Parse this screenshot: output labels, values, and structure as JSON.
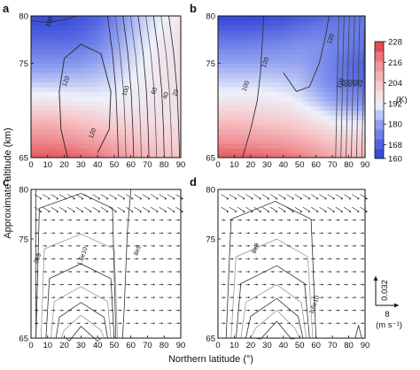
{
  "figure": {
    "ylabel_shared": "Approximate altitude (km)",
    "xlabel_shared": "Northern latitude (°)"
  },
  "colorbar": {
    "unit": "(K)",
    "ticks": [
      160,
      168,
      180,
      192,
      204,
      216,
      228
    ],
    "stops": [
      {
        "value": 160,
        "color": "#2b3fd6"
      },
      {
        "value": 168,
        "color": "#4f62e0"
      },
      {
        "value": 180,
        "color": "#8f9ff0"
      },
      {
        "value": 192,
        "color": "#eef1fb"
      },
      {
        "value": 204,
        "color": "#f6c6c9"
      },
      {
        "value": 216,
        "color": "#ef8d92"
      },
      {
        "value": 228,
        "color": "#e0393f"
      }
    ]
  },
  "vector_key": {
    "vertical_value": "0.032",
    "horizontal_value": "8",
    "unit": "(m s⁻¹)"
  },
  "chart_data": [
    {
      "panel": "a",
      "type": "heatmap",
      "title": "",
      "xlabel": "",
      "ylabel": "",
      "xlim": [
        0,
        90
      ],
      "ylim": [
        65,
        80
      ],
      "x_ticks": [
        0,
        10,
        20,
        30,
        40,
        50,
        60,
        70,
        80,
        90
      ],
      "y_ticks": [
        65,
        75,
        80
      ],
      "temperature_field": {
        "x": [
          0,
          10,
          20,
          30,
          40,
          50,
          60,
          70,
          80,
          90
        ],
        "y": [
          65,
          67,
          69,
          71,
          73,
          75,
          77,
          79,
          80
        ],
        "values": [
          [
            224,
            224,
            223,
            222,
            220,
            216,
            212,
            208,
            206,
            205
          ],
          [
            216,
            216,
            215,
            213,
            211,
            208,
            205,
            203,
            201,
            200
          ],
          [
            207,
            207,
            206,
            204,
            202,
            200,
            199,
            198,
            197,
            197
          ],
          [
            196,
            196,
            195,
            194,
            193,
            193,
            194,
            195,
            196,
            196
          ],
          [
            186,
            186,
            186,
            186,
            187,
            189,
            192,
            194,
            196,
            197
          ],
          [
            178,
            178,
            178,
            179,
            181,
            184,
            189,
            193,
            196,
            198
          ],
          [
            171,
            171,
            171,
            172,
            175,
            180,
            186,
            191,
            195,
            197
          ],
          [
            165,
            165,
            165,
            167,
            170,
            176,
            183,
            189,
            193,
            196
          ],
          [
            163,
            163,
            163,
            165,
            168,
            174,
            182,
            188,
            192,
            195
          ]
        ]
      },
      "contour_labels": [
        {
          "text": "100",
          "x": 12,
          "y": 79.3
        },
        {
          "text": "120",
          "x": 22,
          "y": 73.0
        },
        {
          "text": "100",
          "x": 58,
          "y": 72.0
        },
        {
          "text": "120",
          "x": 38,
          "y": 67.5
        },
        {
          "text": "60",
          "x": 75,
          "y": 72.0
        },
        {
          "text": "40",
          "x": 82,
          "y": 71.5
        },
        {
          "text": "20",
          "x": 88,
          "y": 71.8
        }
      ]
    },
    {
      "panel": "b",
      "type": "heatmap",
      "title": "",
      "xlabel": "",
      "ylabel": "",
      "xlim": [
        0,
        90
      ],
      "ylim": [
        65,
        80
      ],
      "x_ticks": [
        0,
        10,
        20,
        30,
        40,
        50,
        60,
        70,
        80,
        90
      ],
      "y_ticks": [
        65,
        75,
        80
      ],
      "temperature_field": {
        "x": [
          0,
          10,
          20,
          30,
          40,
          50,
          60,
          70,
          80,
          90
        ],
        "y": [
          65,
          67,
          69,
          71,
          73,
          75,
          77,
          79,
          80
        ],
        "values": [
          [
            224,
            224,
            223,
            222,
            221,
            219,
            215,
            211,
            208,
            207
          ],
          [
            214,
            214,
            213,
            212,
            211,
            209,
            206,
            203,
            201,
            200
          ],
          [
            205,
            205,
            204,
            203,
            202,
            200,
            196,
            192,
            190,
            189
          ],
          [
            196,
            196,
            196,
            195,
            194,
            191,
            186,
            181,
            178,
            177
          ],
          [
            188,
            188,
            188,
            188,
            187,
            185,
            180,
            175,
            172,
            170
          ],
          [
            181,
            181,
            181,
            181,
            181,
            181,
            178,
            174,
            170,
            168
          ],
          [
            174,
            174,
            174,
            175,
            176,
            177,
            177,
            175,
            173,
            172
          ],
          [
            166,
            166,
            166,
            167,
            168,
            170,
            172,
            173,
            173,
            173
          ],
          [
            162,
            162,
            162,
            163,
            164,
            166,
            168,
            170,
            171,
            172
          ]
        ]
      },
      "contour_labels": [
        {
          "text": "120",
          "x": 70,
          "y": 77.5
        },
        {
          "text": "120",
          "x": 30,
          "y": 75.0
        },
        {
          "text": "100",
          "x": 18,
          "y": 72.5
        },
        {
          "text": "100",
          "x": 76,
          "y": 72.8
        },
        {
          "text": "80",
          "x": 79,
          "y": 72.8
        },
        {
          "text": "60",
          "x": 82,
          "y": 72.8
        },
        {
          "text": "40",
          "x": 85,
          "y": 72.8
        },
        {
          "text": "20",
          "x": 88,
          "y": 72.8
        }
      ]
    },
    {
      "panel": "c",
      "type": "line",
      "title": "",
      "xlabel": "",
      "ylabel": "",
      "xlim": [
        0,
        90
      ],
      "ylim": [
        65,
        80
      ],
      "x_ticks": [
        0,
        10,
        20,
        30,
        40,
        50,
        60,
        70,
        80,
        90
      ],
      "y_ticks": [
        65,
        75,
        80
      ],
      "contour_labels": [
        {
          "text": "8e9",
          "x": 5,
          "y": 73.0
        },
        {
          "text": "1.6e10",
          "x": 32,
          "y": 73.2
        },
        {
          "text": "8e9",
          "x": 65,
          "y": 73.8
        }
      ]
    },
    {
      "panel": "d",
      "type": "line",
      "title": "",
      "xlabel": "",
      "ylabel": "",
      "xlim": [
        0,
        90
      ],
      "ylim": [
        65,
        80
      ],
      "x_ticks": [
        0,
        10,
        20,
        30,
        40,
        50,
        60,
        70,
        80,
        90
      ],
      "y_ticks": [
        65,
        75,
        80
      ],
      "contour_labels": [
        {
          "text": "8e9",
          "x": 24,
          "y": 74.0
        },
        {
          "text": "1.6e10",
          "x": 60,
          "y": 68.3
        }
      ]
    }
  ]
}
